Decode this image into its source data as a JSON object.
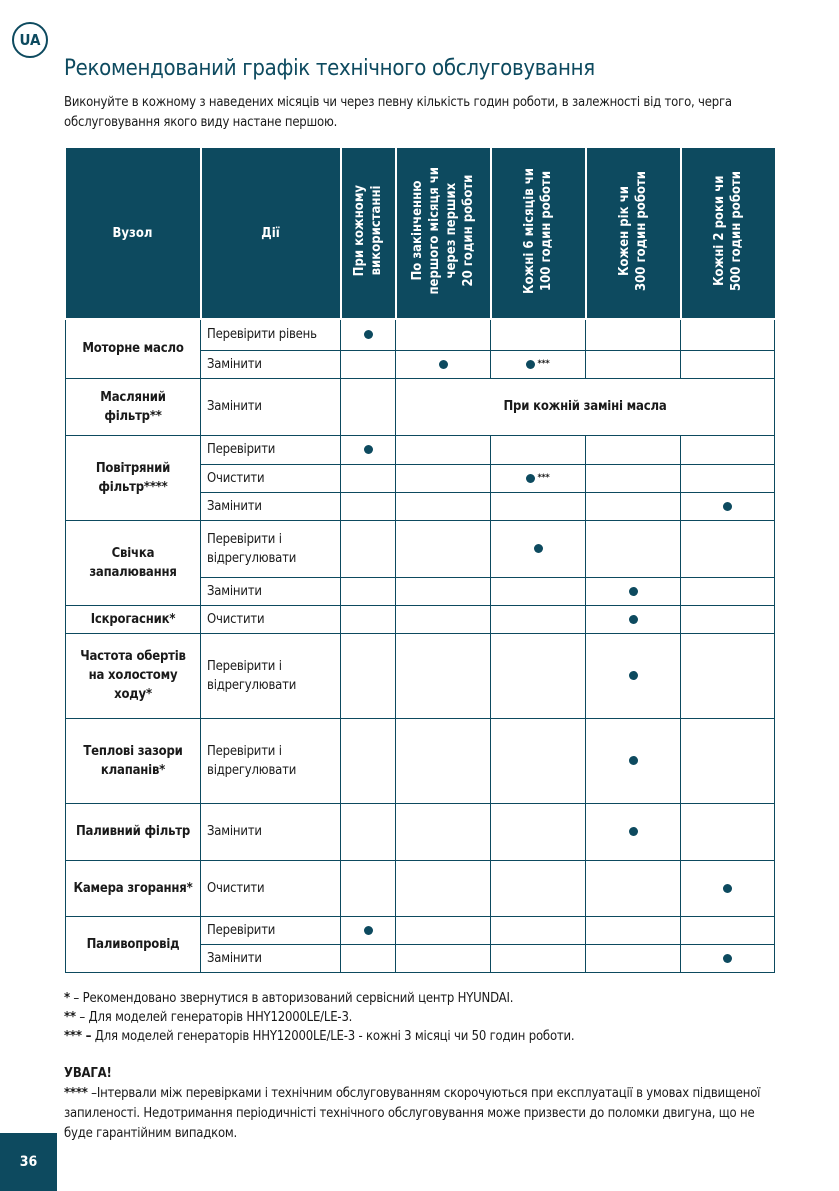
{
  "badge": "UA",
  "title": "Рекомендований графік технічного обслуговування",
  "intro": "Виконуйте в кожному з наведених місяців чи через певну кількість годин роботи, в залежності від того, черга обслуговування якого виду настане першою.",
  "table": {
    "headers": [
      "Вузол",
      "Дії",
      "При кожному\nвикористанні",
      "По закінченню\nпершого місяця чи\nчерез перших\n20 годин роботи",
      "Кожні 6 місяців чи\n100 годин роботи",
      "Кожен рік чи\n300 годин роботи",
      "Кожні 2 роки чи\n500 годин роботи"
    ],
    "groups": [
      {
        "node": "Моторне масло",
        "rows": [
          {
            "action": "Перевірити рівень",
            "marks": [
              0
            ]
          },
          {
            "action": "Замінити",
            "marks": [
              1,
              2
            ],
            "star": {
              "col": 2,
              "text": "***"
            }
          }
        ]
      },
      {
        "node": "Масляний фільтр**",
        "rows": [
          {
            "action": "Замінити",
            "span_text": "При кожній заміні масла"
          }
        ]
      },
      {
        "node": "Повітряний фільтр****",
        "rows": [
          {
            "action": "Перевірити",
            "marks": [
              0
            ]
          },
          {
            "action": "Очистити",
            "marks": [
              2
            ],
            "star": {
              "col": 2,
              "text": "***"
            }
          },
          {
            "action": "Замінити",
            "marks": [
              4
            ]
          }
        ]
      },
      {
        "node": "Свічка запалювання",
        "rows": [
          {
            "action": "Перевірити і відрегулювати",
            "marks": [
              2
            ]
          },
          {
            "action": "Замінити",
            "marks": [
              3
            ]
          }
        ]
      },
      {
        "node": "Іскрогасник*",
        "rows": [
          {
            "action": "Очистити",
            "marks": [
              3
            ]
          }
        ]
      },
      {
        "node": "Частота обертів на холостому ходу*",
        "rows": [
          {
            "action": "Перевірити і відрегулювати",
            "marks": [
              3
            ]
          }
        ]
      },
      {
        "node": "Теплові зазори клапанів*",
        "rows": [
          {
            "action": "Перевірити і відрегулювати",
            "marks": [
              3
            ]
          }
        ]
      },
      {
        "node": "Паливний фільтр",
        "rows": [
          {
            "action": "Замінити",
            "marks": [
              3
            ]
          }
        ]
      },
      {
        "node": "Камера згорання*",
        "rows": [
          {
            "action": "Очистити",
            "marks": [
              4
            ]
          }
        ]
      },
      {
        "node": "Паливопровід",
        "rows": [
          {
            "action": "Перевірити",
            "marks": [
              0
            ]
          },
          {
            "action": "Замінити",
            "marks": [
              4
            ]
          }
        ]
      }
    ]
  },
  "notes": [
    {
      "mark": "*",
      "text": " – Рекомендовано звернутися в авторизований сервісний центр HYUNDAI."
    },
    {
      "mark": "**",
      "text": " – Для моделей генераторів HHY12000LE/LE-3."
    },
    {
      "mark": "*** –",
      "text": " Для моделей генераторів HHY12000LE/LE-3 - кожні 3 місяці чи 50 годин роботи."
    }
  ],
  "warning": {
    "title": "УВАГА!",
    "mark": "****",
    "text": " –Інтервали між перевірками і технічним обслуговуванням скорочуються при експлуатації в умовах підвищеної запиленості. Недотримання періодичністі технічного обслуговування може призвести до поломки двигуна, що не буде гарантійним випадком."
  },
  "page_number": "36",
  "colors": {
    "accent": "#0d4a5f"
  }
}
